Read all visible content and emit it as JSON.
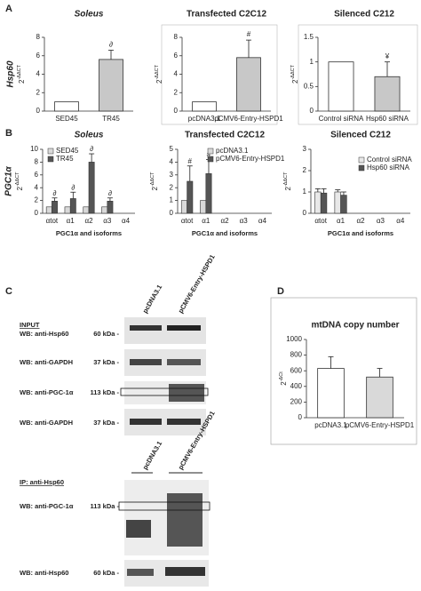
{
  "panel_labels": [
    "A",
    "B",
    "C",
    "D"
  ],
  "chart_data": [
    {
      "type": "bar",
      "title": "Soleus",
      "title_italic": true,
      "row_label": "Hsp60",
      "ylabel": "2",
      "ylabel_sup": "-ΔΔCT",
      "categories": [
        "SED45",
        "TR45"
      ],
      "values": [
        1,
        5.6
      ],
      "errors": [
        null,
        1.0
      ],
      "colors": [
        "#ffffff",
        "#c8c8c8"
      ],
      "annotations": [
        null,
        "∂"
      ],
      "ylim": [
        0,
        8
      ],
      "yticks": [
        0,
        2,
        4,
        6,
        8
      ]
    },
    {
      "type": "bar",
      "title": "Transfected C2C12",
      "ylabel": "2",
      "ylabel_sup": "-ΔΔCT",
      "categories": [
        "pcDNA3.1",
        "pCMV6-Entry-HSPD1"
      ],
      "values": [
        1,
        5.8
      ],
      "errors": [
        null,
        1.9
      ],
      "colors": [
        "#ffffff",
        "#c8c8c8"
      ],
      "annotations": [
        null,
        "#"
      ],
      "ylim": [
        0,
        8
      ],
      "yticks": [
        0,
        2,
        4,
        6,
        8
      ]
    },
    {
      "type": "bar",
      "title": "Silenced C212",
      "ylabel": "2",
      "ylabel_sup": "-ΔΔCT",
      "categories": [
        "Control siRNA",
        "Hsp60 siRNA"
      ],
      "values": [
        1,
        0.7
      ],
      "errors": [
        null,
        0.3
      ],
      "colors": [
        "#ffffff",
        "#c8c8c8"
      ],
      "annotations": [
        null,
        "¥"
      ],
      "ylim": [
        0,
        1.5
      ],
      "yticks": [
        0,
        0.5,
        1,
        1.5
      ]
    },
    {
      "type": "grouped-bar",
      "title": "Soleus",
      "title_italic": true,
      "row_label": "PGC1α",
      "ylabel": "2",
      "ylabel_sup": "-ΔΔCT",
      "xlabel": "PGC1α and isoforms",
      "categories": [
        "αtot",
        "α1",
        "α2",
        "α3",
        "α4"
      ],
      "legend": "upper left",
      "series": [
        {
          "name": "SED45",
          "color": "#d9d9d9",
          "values": [
            1,
            1,
            1,
            1,
            null
          ],
          "errors": [
            null,
            null,
            null,
            null,
            null
          ],
          "annotations": [
            null,
            null,
            null,
            null,
            null
          ]
        },
        {
          "name": "TR45",
          "color": "#555555",
          "values": [
            1.9,
            2.3,
            8.0,
            1.9,
            null
          ],
          "errors": [
            0.5,
            1.0,
            1.3,
            0.5,
            null
          ],
          "annotations": [
            "∂",
            "∂",
            "∂",
            "∂",
            null
          ]
        }
      ],
      "ylim": [
        0,
        10
      ],
      "yticks": [
        0,
        2,
        4,
        6,
        8,
        10
      ]
    },
    {
      "type": "grouped-bar",
      "title": "Transfected C2C12",
      "ylabel": "2",
      "ylabel_sup": "-ΔΔCT",
      "xlabel": "PGC1α and isoforms",
      "categories": [
        "αtot",
        "α1",
        "α2",
        "α3",
        "α4"
      ],
      "legend": "upper right",
      "series": [
        {
          "name": "pcDNA3.1",
          "color": "#d9d9d9",
          "values": [
            1,
            1,
            null,
            null,
            null
          ],
          "errors": [
            null,
            null,
            null,
            null,
            null
          ],
          "annotations": [
            null,
            null,
            null,
            null,
            null
          ]
        },
        {
          "name": "pCMV6-Entry-HSPD1",
          "color": "#555555",
          "values": [
            2.5,
            3.1,
            null,
            null,
            null
          ],
          "errors": [
            1.2,
            1.1,
            null,
            null,
            null
          ],
          "annotations": [
            "#",
            "#",
            null,
            null,
            null
          ]
        }
      ],
      "ylim": [
        0,
        5
      ],
      "yticks": [
        0,
        1,
        2,
        3,
        4,
        5
      ]
    },
    {
      "type": "grouped-bar",
      "title": "Silenced C212",
      "ylabel": "2",
      "ylabel_sup": "-ΔΔCT",
      "xlabel": "PGC1α and isoforms",
      "categories": [
        "αtot",
        "α1",
        "α2",
        "α3",
        "α4"
      ],
      "legend": "right",
      "series": [
        {
          "name": "Control siRNA",
          "color": "#e8e8e8",
          "values": [
            1,
            1,
            null,
            null,
            null
          ],
          "errors": [
            0.15,
            0.1,
            null,
            null,
            null
          ],
          "annotations": [
            null,
            null,
            null,
            null,
            null
          ]
        },
        {
          "name": "Hsp60 siRNA",
          "color": "#555555",
          "values": [
            0.95,
            0.85,
            null,
            null,
            null
          ],
          "errors": [
            0.2,
            0.15,
            null,
            null,
            null
          ],
          "annotations": [
            null,
            null,
            null,
            null,
            null
          ]
        }
      ],
      "ylim": [
        0,
        3
      ],
      "yticks": [
        0,
        1,
        2,
        3
      ]
    },
    {
      "type": "bar",
      "title": "mtDNA copy number",
      "ylabel": "2",
      "ylabel_sup": "-ΔCt",
      "categories": [
        "pcDNA3.1",
        "pCMV6-Entry-HSPD1"
      ],
      "values": [
        630,
        520
      ],
      "errors": [
        150,
        110
      ],
      "colors": [
        "#ffffff",
        "#d9d9d9"
      ],
      "ylim": [
        0,
        1000
      ],
      "yticks": [
        0,
        200,
        400,
        600,
        800,
        1000
      ]
    }
  ],
  "blots": {
    "input_title": "INPUT",
    "input_lanes": [
      "pcDNA3.1",
      "pCMV6-Entry-HSPD1"
    ],
    "input_rows": [
      {
        "label": "WB: anti-Hsp60",
        "size": "60 kDa -"
      },
      {
        "label": "WB: anti-GAPDH",
        "size": "37 kDa -"
      },
      {
        "label": "WB: anti-PGC-1α",
        "size": "113 kDa -"
      },
      {
        "label": "WB: anti-GAPDH",
        "size": "37 kDa -"
      }
    ],
    "ip_title": "IP: anti-Hsp60",
    "ip_lanes": [
      "pcDNA3.1",
      "pCMV6-Entry-HSPD1"
    ],
    "ip_rows": [
      {
        "label": "WB: anti-PGC-1α",
        "size": "113 kDa -"
      },
      {
        "label": "WB: anti-Hsp60",
        "size": "60 kDa -"
      }
    ]
  }
}
